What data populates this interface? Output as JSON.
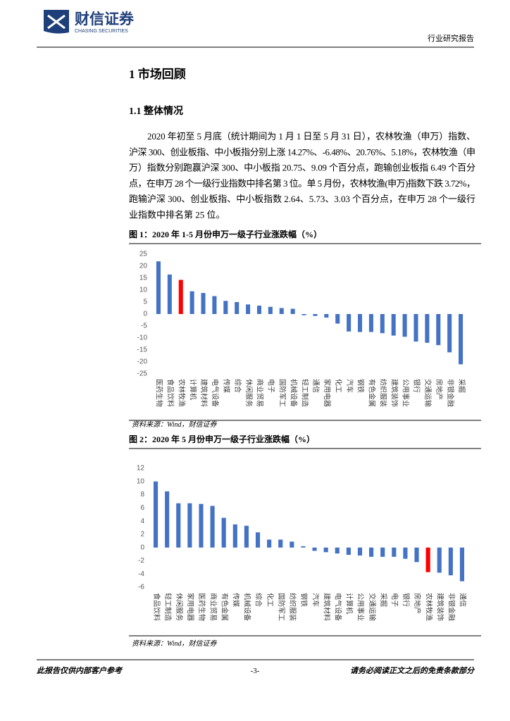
{
  "header": {
    "logo_text": "财信证券",
    "logo_subtext": "CHASING SECURITIES",
    "report_type": "行业研究报告"
  },
  "heading": "1 市场回顾",
  "subheading": "1.1 整体情况",
  "paragraph": [
    "2020 年初至 5 月底（统计期间为 1 月 1 日至 5 月 31 日），农林牧渔（申万）指数、",
    "沪深 300、创业板指、中小板指分别上涨 14.27%、-6.48%、20.76%、5.18%，农林牧渔（申",
    "万）指数分别跑赢沪深 300、中小板指 20.75、9.09 个百分点，跑输创业板指 6.49 个百分",
    "点，在申万 28 个一级行业指数中排名第 3 位。单 5 月份，农林牧渔(申万)指数下跌 3.72%，",
    "跑输沪深 300、创业板指、中小板指数 2.64、5.73、3.03 个百分点，在申万 28 个一级行",
    "业指数中排名第 25 位。"
  ],
  "chart_data": [
    {
      "type": "bar",
      "title": "图 1：2020 年 1-5 月份申万一级子行业涨跌幅（%）",
      "source": "资料来源：Wind，财信证券",
      "categories": [
        "医药生物",
        "食品饮料",
        "农林牧渔",
        "计算机",
        "建筑材料",
        "电气设备",
        "传媒",
        "综合",
        "休闲服务",
        "商业贸易",
        "电子",
        "国防军工",
        "机械设备",
        "轻工制造",
        "通信",
        "家用电器",
        "化工",
        "汽车",
        "钢铁",
        "有色金属",
        "纺织服装",
        "建筑装饰",
        "公用事业",
        "银行",
        "交通运输",
        "房地产",
        "非银金融",
        "采掘"
      ],
      "values": [
        22,
        16.5,
        14.27,
        9.5,
        8.8,
        7.5,
        5.5,
        5,
        4,
        3.5,
        3,
        2.5,
        2.2,
        -0.5,
        -0.8,
        -1.5,
        -4,
        -7.3,
        -7.5,
        -7.5,
        -8,
        -9,
        -9.5,
        -11.5,
        -12,
        -13,
        -16,
        -21
      ],
      "colors": [
        "#4472c4",
        "#4472c4",
        "#ff0000",
        "#4472c4",
        "#4472c4",
        "#4472c4",
        "#4472c4",
        "#4472c4",
        "#4472c4",
        "#4472c4",
        "#4472c4",
        "#4472c4",
        "#4472c4",
        "#4472c4",
        "#4472c4",
        "#4472c4",
        "#4472c4",
        "#4472c4",
        "#4472c4",
        "#4472c4",
        "#4472c4",
        "#4472c4",
        "#4472c4",
        "#4472c4",
        "#4472c4",
        "#4472c4",
        "#4472c4",
        "#4472c4"
      ],
      "ylim": [
        -25,
        25
      ],
      "yticks": [
        -25,
        -20,
        -15,
        -10,
        -5,
        0,
        5,
        10,
        15,
        20,
        25
      ]
    },
    {
      "type": "bar",
      "title": "图 2：2020 年 5 月份申万一级子行业涨跌幅（%）",
      "source": "资料来源：Wind，财信证券",
      "categories": [
        "食品饮料",
        "轻工制造",
        "休闲服务",
        "家用电器",
        "医药生物",
        "商业贸易",
        "有色金属",
        "传媒",
        "机械设备",
        "综合",
        "化工",
        "国防军工",
        "纺织服装",
        "钢铁",
        "汽车",
        "建筑材料",
        "电气设备",
        "计算机",
        "公用事业",
        "交通运输",
        "采掘",
        "电子",
        "银行",
        "房地产",
        "农林牧渔",
        "建筑装饰",
        "非银金融",
        "通信"
      ],
      "values": [
        10,
        8.5,
        6.7,
        6.7,
        6.6,
        6.3,
        4.5,
        3.5,
        3.3,
        2.3,
        1.2,
        1.2,
        0.9,
        0.2,
        -0.5,
        -0.7,
        -0.9,
        -1.1,
        -1.2,
        -1.4,
        -1.4,
        -1.4,
        -1.7,
        -2.2,
        -3.72,
        -3.8,
        -4.2,
        -5.1
      ],
      "colors": [
        "#4472c4",
        "#4472c4",
        "#4472c4",
        "#4472c4",
        "#4472c4",
        "#4472c4",
        "#4472c4",
        "#4472c4",
        "#4472c4",
        "#4472c4",
        "#4472c4",
        "#4472c4",
        "#4472c4",
        "#4472c4",
        "#4472c4",
        "#4472c4",
        "#4472c4",
        "#4472c4",
        "#4472c4",
        "#4472c4",
        "#4472c4",
        "#4472c4",
        "#4472c4",
        "#4472c4",
        "#ff0000",
        "#4472c4",
        "#4472c4",
        "#4472c4"
      ],
      "ylim": [
        -6,
        12
      ],
      "yticks": [
        -6,
        -4,
        -2,
        0,
        2,
        4,
        6,
        8,
        10,
        12
      ]
    }
  ],
  "footer": {
    "left": "此报告仅供内部客户参考",
    "page": "-3-",
    "right": "请务必阅读正文之后的免责条款部分"
  }
}
